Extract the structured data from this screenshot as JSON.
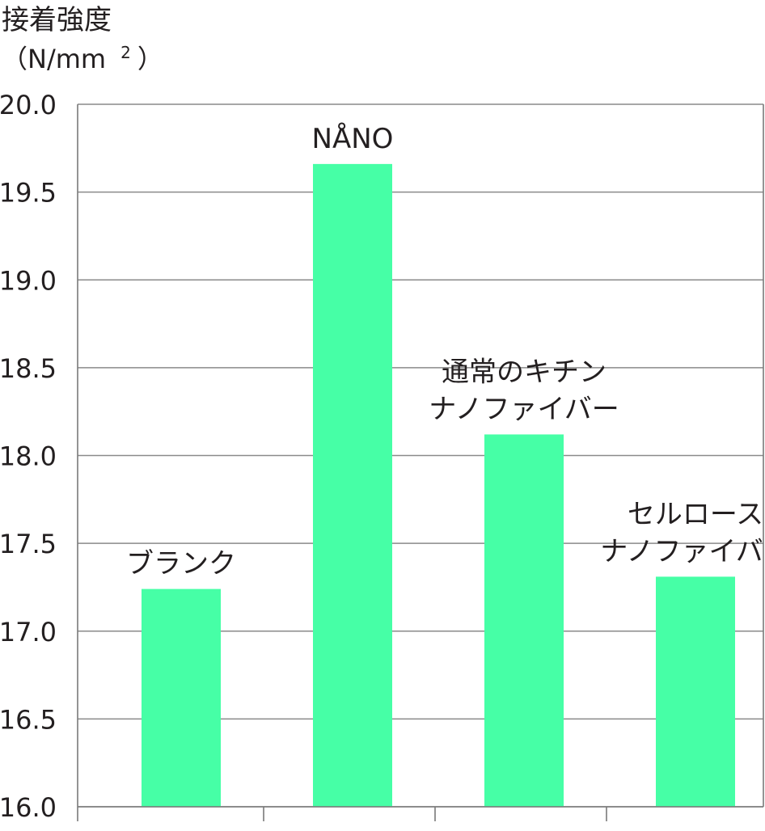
{
  "chart_data": {
    "type": "bar",
    "ylabel": "接着強度",
    "ylabel_unit": "（N/mm",
    "ylabel_unit_sup": "2",
    "ylabel_unit_close": "）",
    "ylim": [
      16.0,
      20.0
    ],
    "yticks": [
      "16.0",
      "16.5",
      "17.0",
      "17.5",
      "18.0",
      "18.5",
      "19.0",
      "19.5",
      "20.0"
    ],
    "grid": true,
    "bar_color": "#46ffa6",
    "categories": [
      {
        "label": [
          "ブランク"
        ],
        "value": 17.24
      },
      {
        "label": [
          "NÅNO"
        ],
        "value": 19.66
      },
      {
        "label": [
          "通常のキチン",
          "ナノファイバー"
        ],
        "value": 18.12
      },
      {
        "label": [
          "セルロース",
          "ナノファイバー"
        ],
        "value": 17.31
      }
    ]
  }
}
